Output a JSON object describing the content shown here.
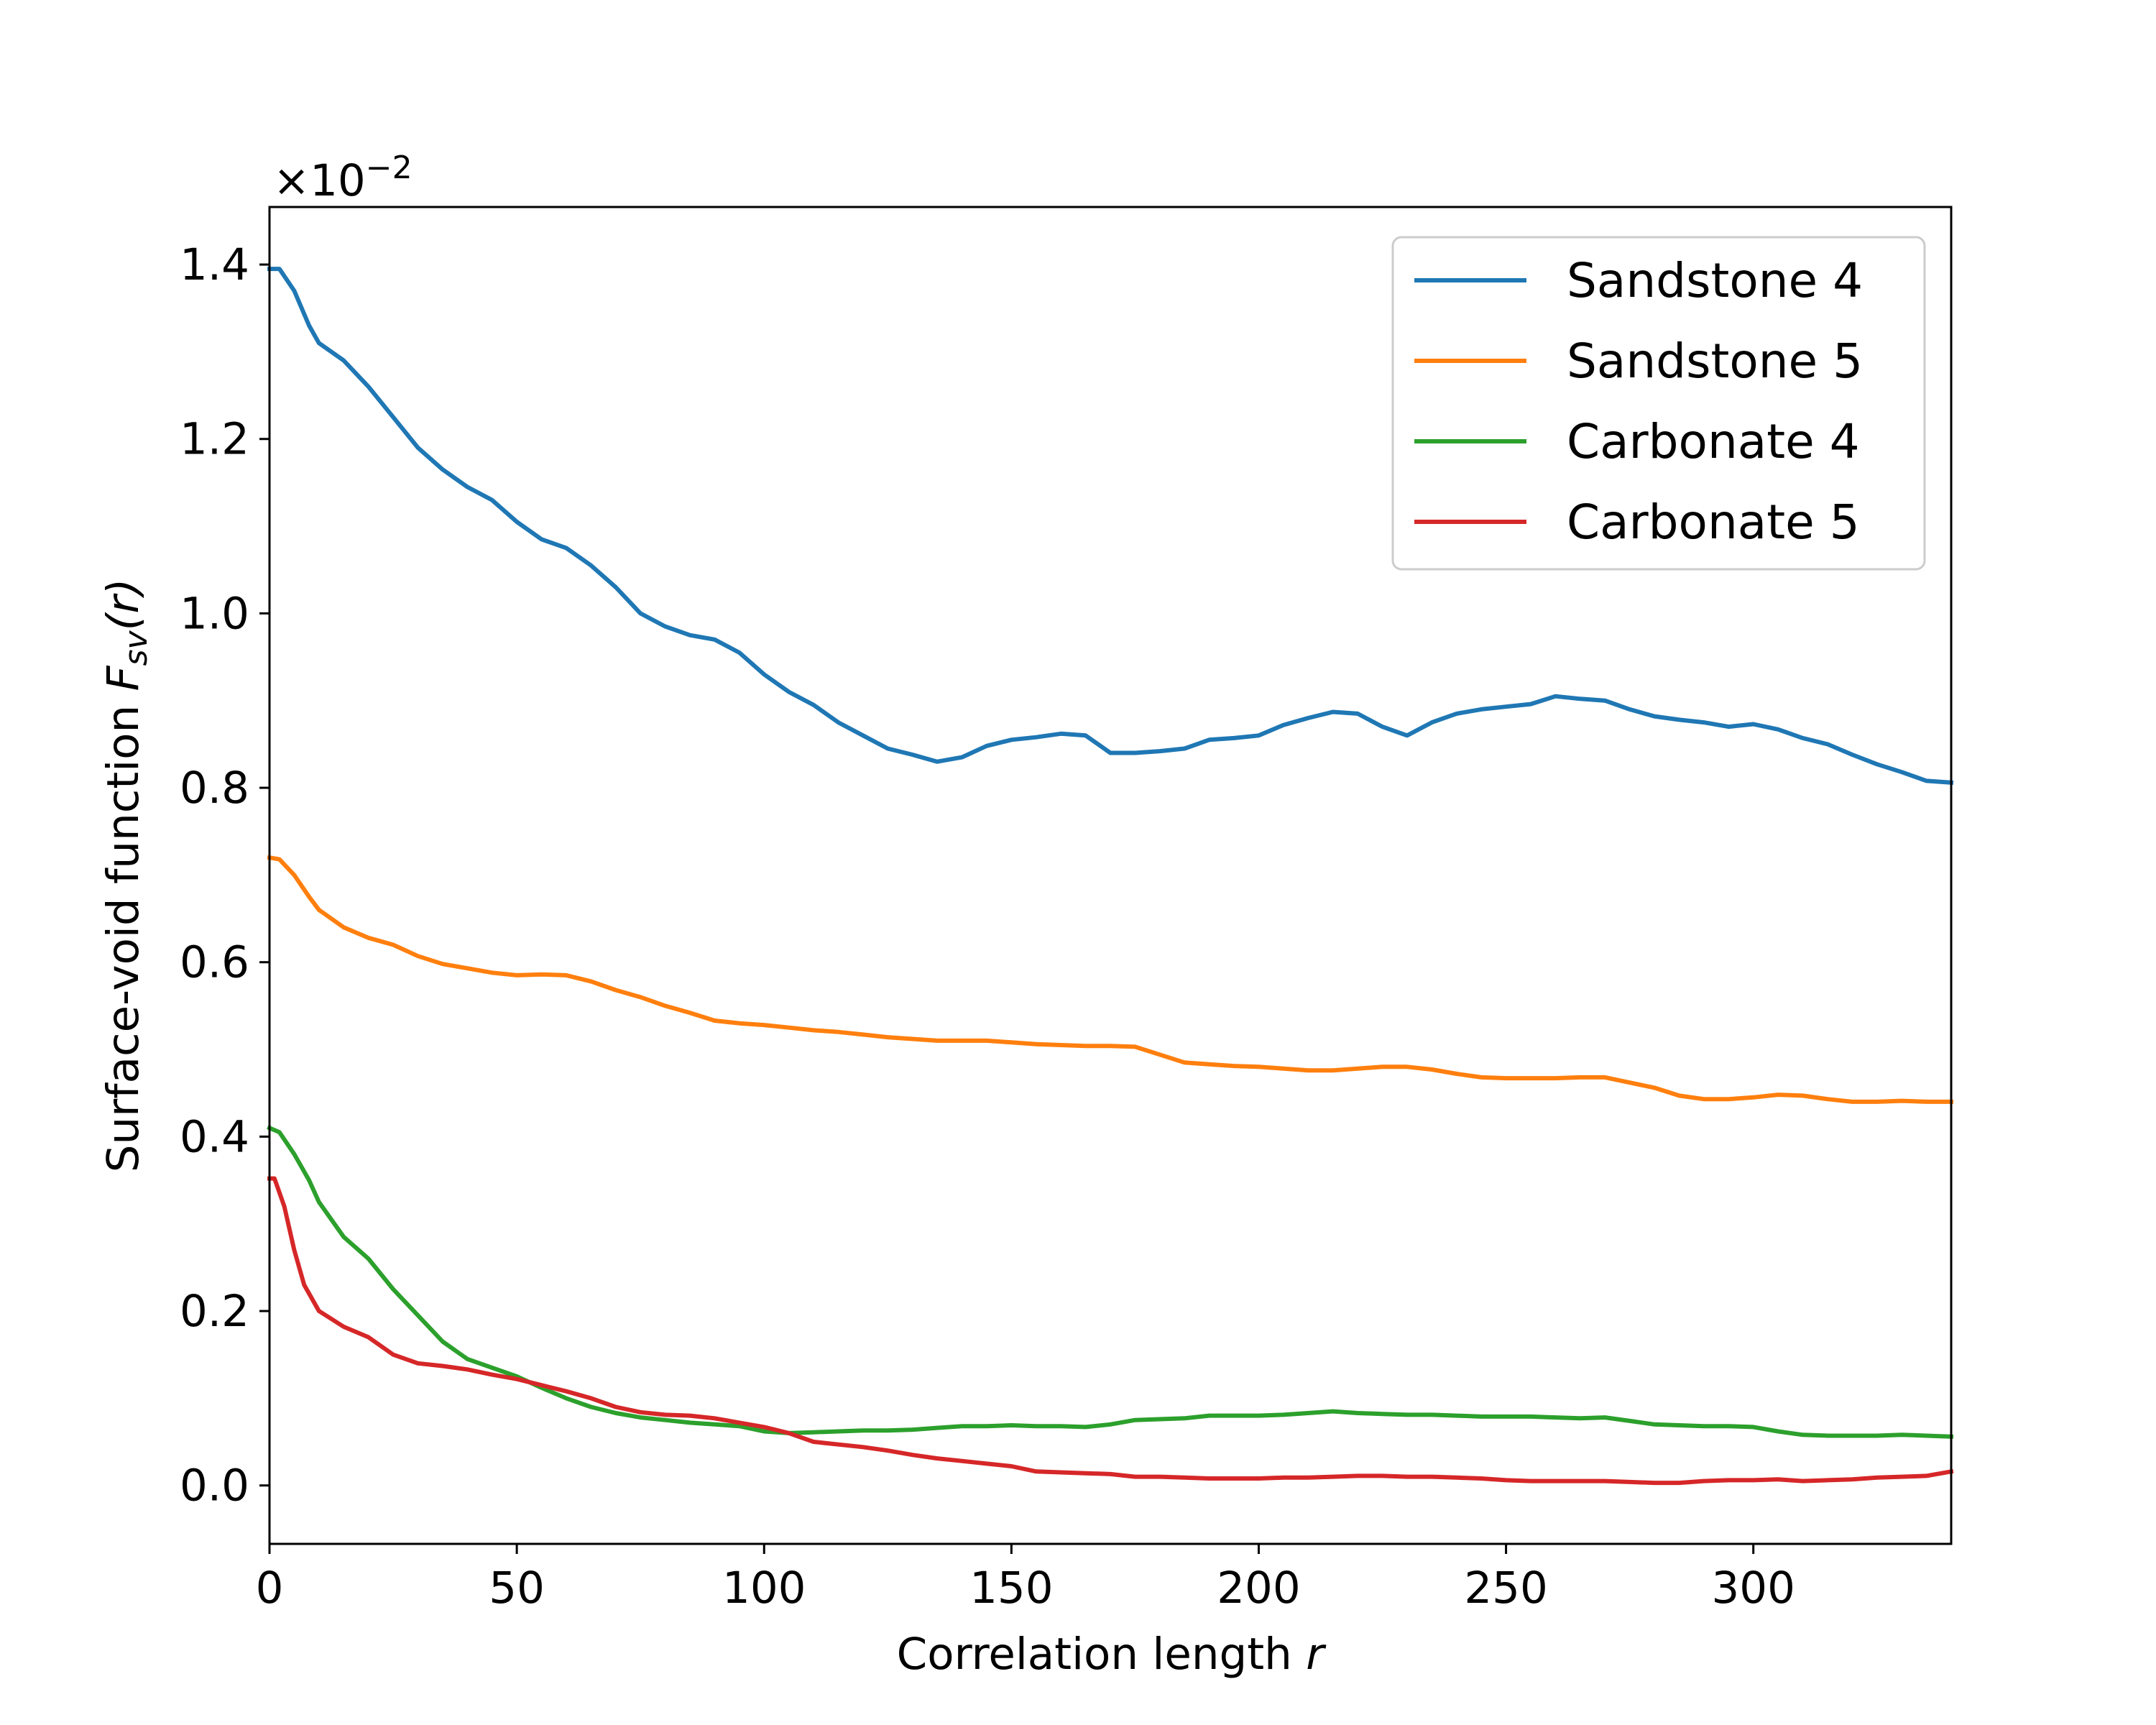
{
  "chart_data": {
    "type": "line",
    "xlabel": "Correlation length",
    "xlabel_var": "r",
    "ylabel": "Surface-void function",
    "ylabel_var": "F",
    "ylabel_sub": "sv",
    "ylabel_arg": "(r)",
    "y_multiplier_text": "×10",
    "y_multiplier_exp": "−2",
    "xlim": [
      0,
      340
    ],
    "ylim": [
      -0.067,
      1.466
    ],
    "x_ticks": [
      0,
      50,
      100,
      150,
      200,
      250,
      300
    ],
    "x_tick_labels": [
      "0",
      "50",
      "100",
      "150",
      "200",
      "250",
      "300"
    ],
    "y_ticks": [
      0.0,
      0.2,
      0.4,
      0.6,
      0.8,
      1.0,
      1.2,
      1.4
    ],
    "y_tick_labels": [
      "0.0",
      "0.2",
      "0.4",
      "0.6",
      "0.8",
      "1.0",
      "1.2",
      "1.4"
    ],
    "grid": false,
    "legend_position": "top-right",
    "series": [
      {
        "name": "Sandstone 4",
        "color": "#1f77b4",
        "points": [
          [
            0,
            1.395
          ],
          [
            2,
            1.395
          ],
          [
            5,
            1.37
          ],
          [
            8,
            1.33
          ],
          [
            10,
            1.31
          ],
          [
            15,
            1.29
          ],
          [
            20,
            1.26
          ],
          [
            25,
            1.225
          ],
          [
            30,
            1.19
          ],
          [
            35,
            1.165
          ],
          [
            40,
            1.145
          ],
          [
            45,
            1.13
          ],
          [
            50,
            1.105
          ],
          [
            55,
            1.085
          ],
          [
            60,
            1.075
          ],
          [
            65,
            1.055
          ],
          [
            70,
            1.03
          ],
          [
            75,
            1.0
          ],
          [
            80,
            0.985
          ],
          [
            85,
            0.975
          ],
          [
            90,
            0.97
          ],
          [
            95,
            0.955
          ],
          [
            100,
            0.93
          ],
          [
            105,
            0.91
          ],
          [
            110,
            0.895
          ],
          [
            115,
            0.875
          ],
          [
            120,
            0.86
          ],
          [
            125,
            0.845
          ],
          [
            130,
            0.838
          ],
          [
            135,
            0.83
          ],
          [
            140,
            0.835
          ],
          [
            145,
            0.848
          ],
          [
            150,
            0.855
          ],
          [
            155,
            0.858
          ],
          [
            160,
            0.862
          ],
          [
            165,
            0.86
          ],
          [
            170,
            0.84
          ],
          [
            175,
            0.84
          ],
          [
            180,
            0.842
          ],
          [
            185,
            0.845
          ],
          [
            190,
            0.855
          ],
          [
            195,
            0.857
          ],
          [
            200,
            0.86
          ],
          [
            205,
            0.872
          ],
          [
            210,
            0.88
          ],
          [
            215,
            0.887
          ],
          [
            220,
            0.885
          ],
          [
            225,
            0.87
          ],
          [
            230,
            0.86
          ],
          [
            235,
            0.875
          ],
          [
            240,
            0.885
          ],
          [
            245,
            0.89
          ],
          [
            250,
            0.893
          ],
          [
            255,
            0.896
          ],
          [
            260,
            0.905
          ],
          [
            265,
            0.902
          ],
          [
            270,
            0.9
          ],
          [
            275,
            0.89
          ],
          [
            280,
            0.882
          ],
          [
            285,
            0.878
          ],
          [
            290,
            0.875
          ],
          [
            295,
            0.87
          ],
          [
            300,
            0.873
          ],
          [
            305,
            0.867
          ],
          [
            310,
            0.857
          ],
          [
            315,
            0.85
          ],
          [
            320,
            0.838
          ],
          [
            325,
            0.827
          ],
          [
            330,
            0.818
          ],
          [
            335,
            0.808
          ],
          [
            340,
            0.806
          ]
        ]
      },
      {
        "name": "Sandstone 5",
        "color": "#ff7f0e",
        "points": [
          [
            0,
            0.72
          ],
          [
            2,
            0.718
          ],
          [
            5,
            0.7
          ],
          [
            8,
            0.675
          ],
          [
            10,
            0.66
          ],
          [
            15,
            0.64
          ],
          [
            20,
            0.628
          ],
          [
            25,
            0.62
          ],
          [
            30,
            0.607
          ],
          [
            35,
            0.598
          ],
          [
            40,
            0.593
          ],
          [
            45,
            0.588
          ],
          [
            50,
            0.585
          ],
          [
            55,
            0.586
          ],
          [
            60,
            0.585
          ],
          [
            65,
            0.578
          ],
          [
            70,
            0.568
          ],
          [
            75,
            0.56
          ],
          [
            80,
            0.55
          ],
          [
            85,
            0.542
          ],
          [
            90,
            0.533
          ],
          [
            95,
            0.53
          ],
          [
            100,
            0.528
          ],
          [
            105,
            0.525
          ],
          [
            110,
            0.522
          ],
          [
            115,
            0.52
          ],
          [
            120,
            0.517
          ],
          [
            125,
            0.514
          ],
          [
            130,
            0.512
          ],
          [
            135,
            0.51
          ],
          [
            140,
            0.51
          ],
          [
            145,
            0.51
          ],
          [
            150,
            0.508
          ],
          [
            155,
            0.506
          ],
          [
            160,
            0.505
          ],
          [
            165,
            0.504
          ],
          [
            170,
            0.504
          ],
          [
            175,
            0.503
          ],
          [
            180,
            0.494
          ],
          [
            185,
            0.485
          ],
          [
            190,
            0.483
          ],
          [
            195,
            0.481
          ],
          [
            200,
            0.48
          ],
          [
            205,
            0.478
          ],
          [
            210,
            0.476
          ],
          [
            215,
            0.476
          ],
          [
            220,
            0.478
          ],
          [
            225,
            0.48
          ],
          [
            230,
            0.48
          ],
          [
            235,
            0.477
          ],
          [
            240,
            0.472
          ],
          [
            245,
            0.468
          ],
          [
            250,
            0.467
          ],
          [
            255,
            0.467
          ],
          [
            260,
            0.467
          ],
          [
            265,
            0.468
          ],
          [
            270,
            0.468
          ],
          [
            275,
            0.462
          ],
          [
            280,
            0.456
          ],
          [
            285,
            0.447
          ],
          [
            290,
            0.443
          ],
          [
            295,
            0.443
          ],
          [
            300,
            0.445
          ],
          [
            305,
            0.448
          ],
          [
            310,
            0.447
          ],
          [
            315,
            0.443
          ],
          [
            320,
            0.44
          ],
          [
            325,
            0.44
          ],
          [
            330,
            0.441
          ],
          [
            335,
            0.44
          ],
          [
            340,
            0.44
          ]
        ]
      },
      {
        "name": "Carbonate 4",
        "color": "#2ca02c",
        "points": [
          [
            0,
            0.41
          ],
          [
            2,
            0.405
          ],
          [
            5,
            0.38
          ],
          [
            8,
            0.35
          ],
          [
            10,
            0.325
          ],
          [
            15,
            0.285
          ],
          [
            20,
            0.26
          ],
          [
            25,
            0.225
          ],
          [
            30,
            0.195
          ],
          [
            35,
            0.165
          ],
          [
            40,
            0.145
          ],
          [
            45,
            0.135
          ],
          [
            50,
            0.125
          ],
          [
            55,
            0.112
          ],
          [
            60,
            0.1
          ],
          [
            65,
            0.09
          ],
          [
            70,
            0.083
          ],
          [
            75,
            0.078
          ],
          [
            80,
            0.075
          ],
          [
            85,
            0.072
          ],
          [
            90,
            0.07
          ],
          [
            95,
            0.068
          ],
          [
            100,
            0.062
          ],
          [
            105,
            0.06
          ],
          [
            110,
            0.061
          ],
          [
            115,
            0.062
          ],
          [
            120,
            0.063
          ],
          [
            125,
            0.063
          ],
          [
            130,
            0.064
          ],
          [
            135,
            0.066
          ],
          [
            140,
            0.068
          ],
          [
            145,
            0.068
          ],
          [
            150,
            0.069
          ],
          [
            155,
            0.068
          ],
          [
            160,
            0.068
          ],
          [
            165,
            0.067
          ],
          [
            170,
            0.07
          ],
          [
            175,
            0.075
          ],
          [
            180,
            0.076
          ],
          [
            185,
            0.077
          ],
          [
            190,
            0.08
          ],
          [
            195,
            0.08
          ],
          [
            200,
            0.08
          ],
          [
            205,
            0.081
          ],
          [
            210,
            0.083
          ],
          [
            215,
            0.085
          ],
          [
            220,
            0.083
          ],
          [
            225,
            0.082
          ],
          [
            230,
            0.081
          ],
          [
            235,
            0.081
          ],
          [
            240,
            0.08
          ],
          [
            245,
            0.079
          ],
          [
            250,
            0.079
          ],
          [
            255,
            0.079
          ],
          [
            260,
            0.078
          ],
          [
            265,
            0.077
          ],
          [
            270,
            0.078
          ],
          [
            275,
            0.074
          ],
          [
            280,
            0.07
          ],
          [
            285,
            0.069
          ],
          [
            290,
            0.068
          ],
          [
            295,
            0.068
          ],
          [
            300,
            0.067
          ],
          [
            305,
            0.062
          ],
          [
            310,
            0.058
          ],
          [
            315,
            0.057
          ],
          [
            320,
            0.057
          ],
          [
            325,
            0.057
          ],
          [
            330,
            0.058
          ],
          [
            335,
            0.057
          ],
          [
            340,
            0.056
          ]
        ]
      },
      {
        "name": "Carbonate 5",
        "color": "#d62728",
        "points": [
          [
            0,
            0.352
          ],
          [
            1,
            0.352
          ],
          [
            3,
            0.32
          ],
          [
            5,
            0.27
          ],
          [
            7,
            0.23
          ],
          [
            10,
            0.2
          ],
          [
            15,
            0.182
          ],
          [
            20,
            0.17
          ],
          [
            25,
            0.15
          ],
          [
            30,
            0.14
          ],
          [
            35,
            0.137
          ],
          [
            40,
            0.133
          ],
          [
            45,
            0.127
          ],
          [
            50,
            0.122
          ],
          [
            55,
            0.115
          ],
          [
            60,
            0.108
          ],
          [
            65,
            0.1
          ],
          [
            70,
            0.09
          ],
          [
            75,
            0.084
          ],
          [
            80,
            0.081
          ],
          [
            85,
            0.08
          ],
          [
            90,
            0.077
          ],
          [
            95,
            0.072
          ],
          [
            100,
            0.067
          ],
          [
            105,
            0.06
          ],
          [
            110,
            0.05
          ],
          [
            115,
            0.047
          ],
          [
            120,
            0.044
          ],
          [
            125,
            0.04
          ],
          [
            130,
            0.035
          ],
          [
            135,
            0.031
          ],
          [
            140,
            0.028
          ],
          [
            145,
            0.025
          ],
          [
            150,
            0.022
          ],
          [
            155,
            0.016
          ],
          [
            160,
            0.015
          ],
          [
            165,
            0.014
          ],
          [
            170,
            0.013
          ],
          [
            175,
            0.01
          ],
          [
            180,
            0.01
          ],
          [
            185,
            0.009
          ],
          [
            190,
            0.008
          ],
          [
            195,
            0.008
          ],
          [
            200,
            0.008
          ],
          [
            205,
            0.009
          ],
          [
            210,
            0.009
          ],
          [
            215,
            0.01
          ],
          [
            220,
            0.011
          ],
          [
            225,
            0.011
          ],
          [
            230,
            0.01
          ],
          [
            235,
            0.01
          ],
          [
            240,
            0.009
          ],
          [
            245,
            0.008
          ],
          [
            250,
            0.006
          ],
          [
            255,
            0.005
          ],
          [
            260,
            0.005
          ],
          [
            265,
            0.005
          ],
          [
            270,
            0.005
          ],
          [
            275,
            0.004
          ],
          [
            280,
            0.003
          ],
          [
            285,
            0.003
          ],
          [
            290,
            0.005
          ],
          [
            295,
            0.006
          ],
          [
            300,
            0.006
          ],
          [
            305,
            0.007
          ],
          [
            310,
            0.005
          ],
          [
            315,
            0.006
          ],
          [
            320,
            0.007
          ],
          [
            325,
            0.009
          ],
          [
            330,
            0.01
          ],
          [
            335,
            0.011
          ],
          [
            340,
            0.016
          ]
        ]
      }
    ]
  }
}
